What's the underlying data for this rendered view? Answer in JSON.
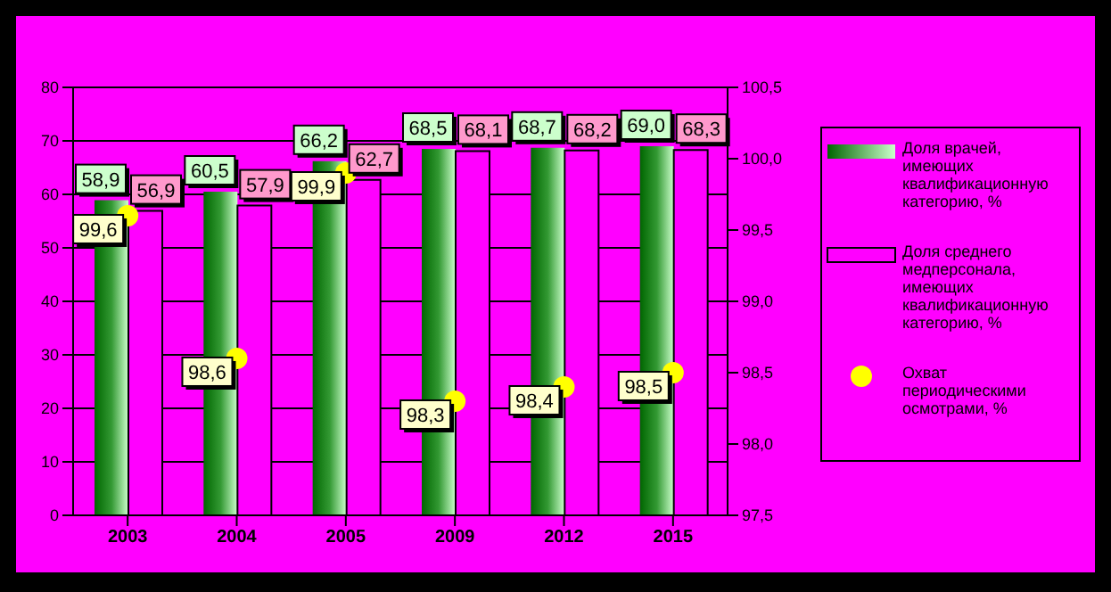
{
  "chart_data": {
    "type": "bar",
    "categories": [
      "2003",
      "2004",
      "2005",
      "2009",
      "2012",
      "2015"
    ],
    "series": [
      {
        "name": "Доля врачей, имеющих квалификационную категорию, %",
        "color": "#339933",
        "values": [
          58.9,
          60.5,
          66.2,
          68.5,
          68.7,
          69.0
        ],
        "value_labels": [
          "58,9",
          "60,5",
          "66,2",
          "68,5",
          "68,7",
          "69,0"
        ]
      },
      {
        "name": "Доля среднего медперсонала, имеющих квалификационную категорию, %",
        "color": "#ff00ff",
        "values": [
          56.9,
          57.9,
          62.7,
          68.1,
          68.2,
          68.3
        ],
        "value_labels": [
          "56,9",
          "57,9",
          "62,7",
          "68,1",
          "68,2",
          "68,3"
        ]
      },
      {
        "name": "Охват периодическими осмотрами, %",
        "type": "scatter",
        "axis": "y2",
        "color": "#ffff00",
        "values": [
          99.6,
          98.6,
          99.9,
          98.3,
          98.4,
          98.5
        ],
        "value_labels": [
          "99,6",
          "98,6",
          "99,9",
          "98,3",
          "98,4",
          "98,5"
        ]
      }
    ],
    "ylim": [
      0,
      80
    ],
    "yticks": [
      0,
      10,
      20,
      30,
      40,
      50,
      60,
      70,
      80
    ],
    "y2lim": [
      97.5,
      100.5
    ],
    "y2ticks": [
      {
        "value": 97.5,
        "label": "97,5"
      },
      {
        "value": 98.0,
        "label": "98,0"
      },
      {
        "value": 98.5,
        "label": "98,5"
      },
      {
        "value": 99.0,
        "label": "99,0"
      },
      {
        "value": 99.5,
        "label": "99,5"
      },
      {
        "value": 100.0,
        "label": "100,0"
      },
      {
        "value": 100.5,
        "label": "100,5"
      }
    ],
    "grid": "y",
    "legend": "right",
    "marker": "circle"
  }
}
